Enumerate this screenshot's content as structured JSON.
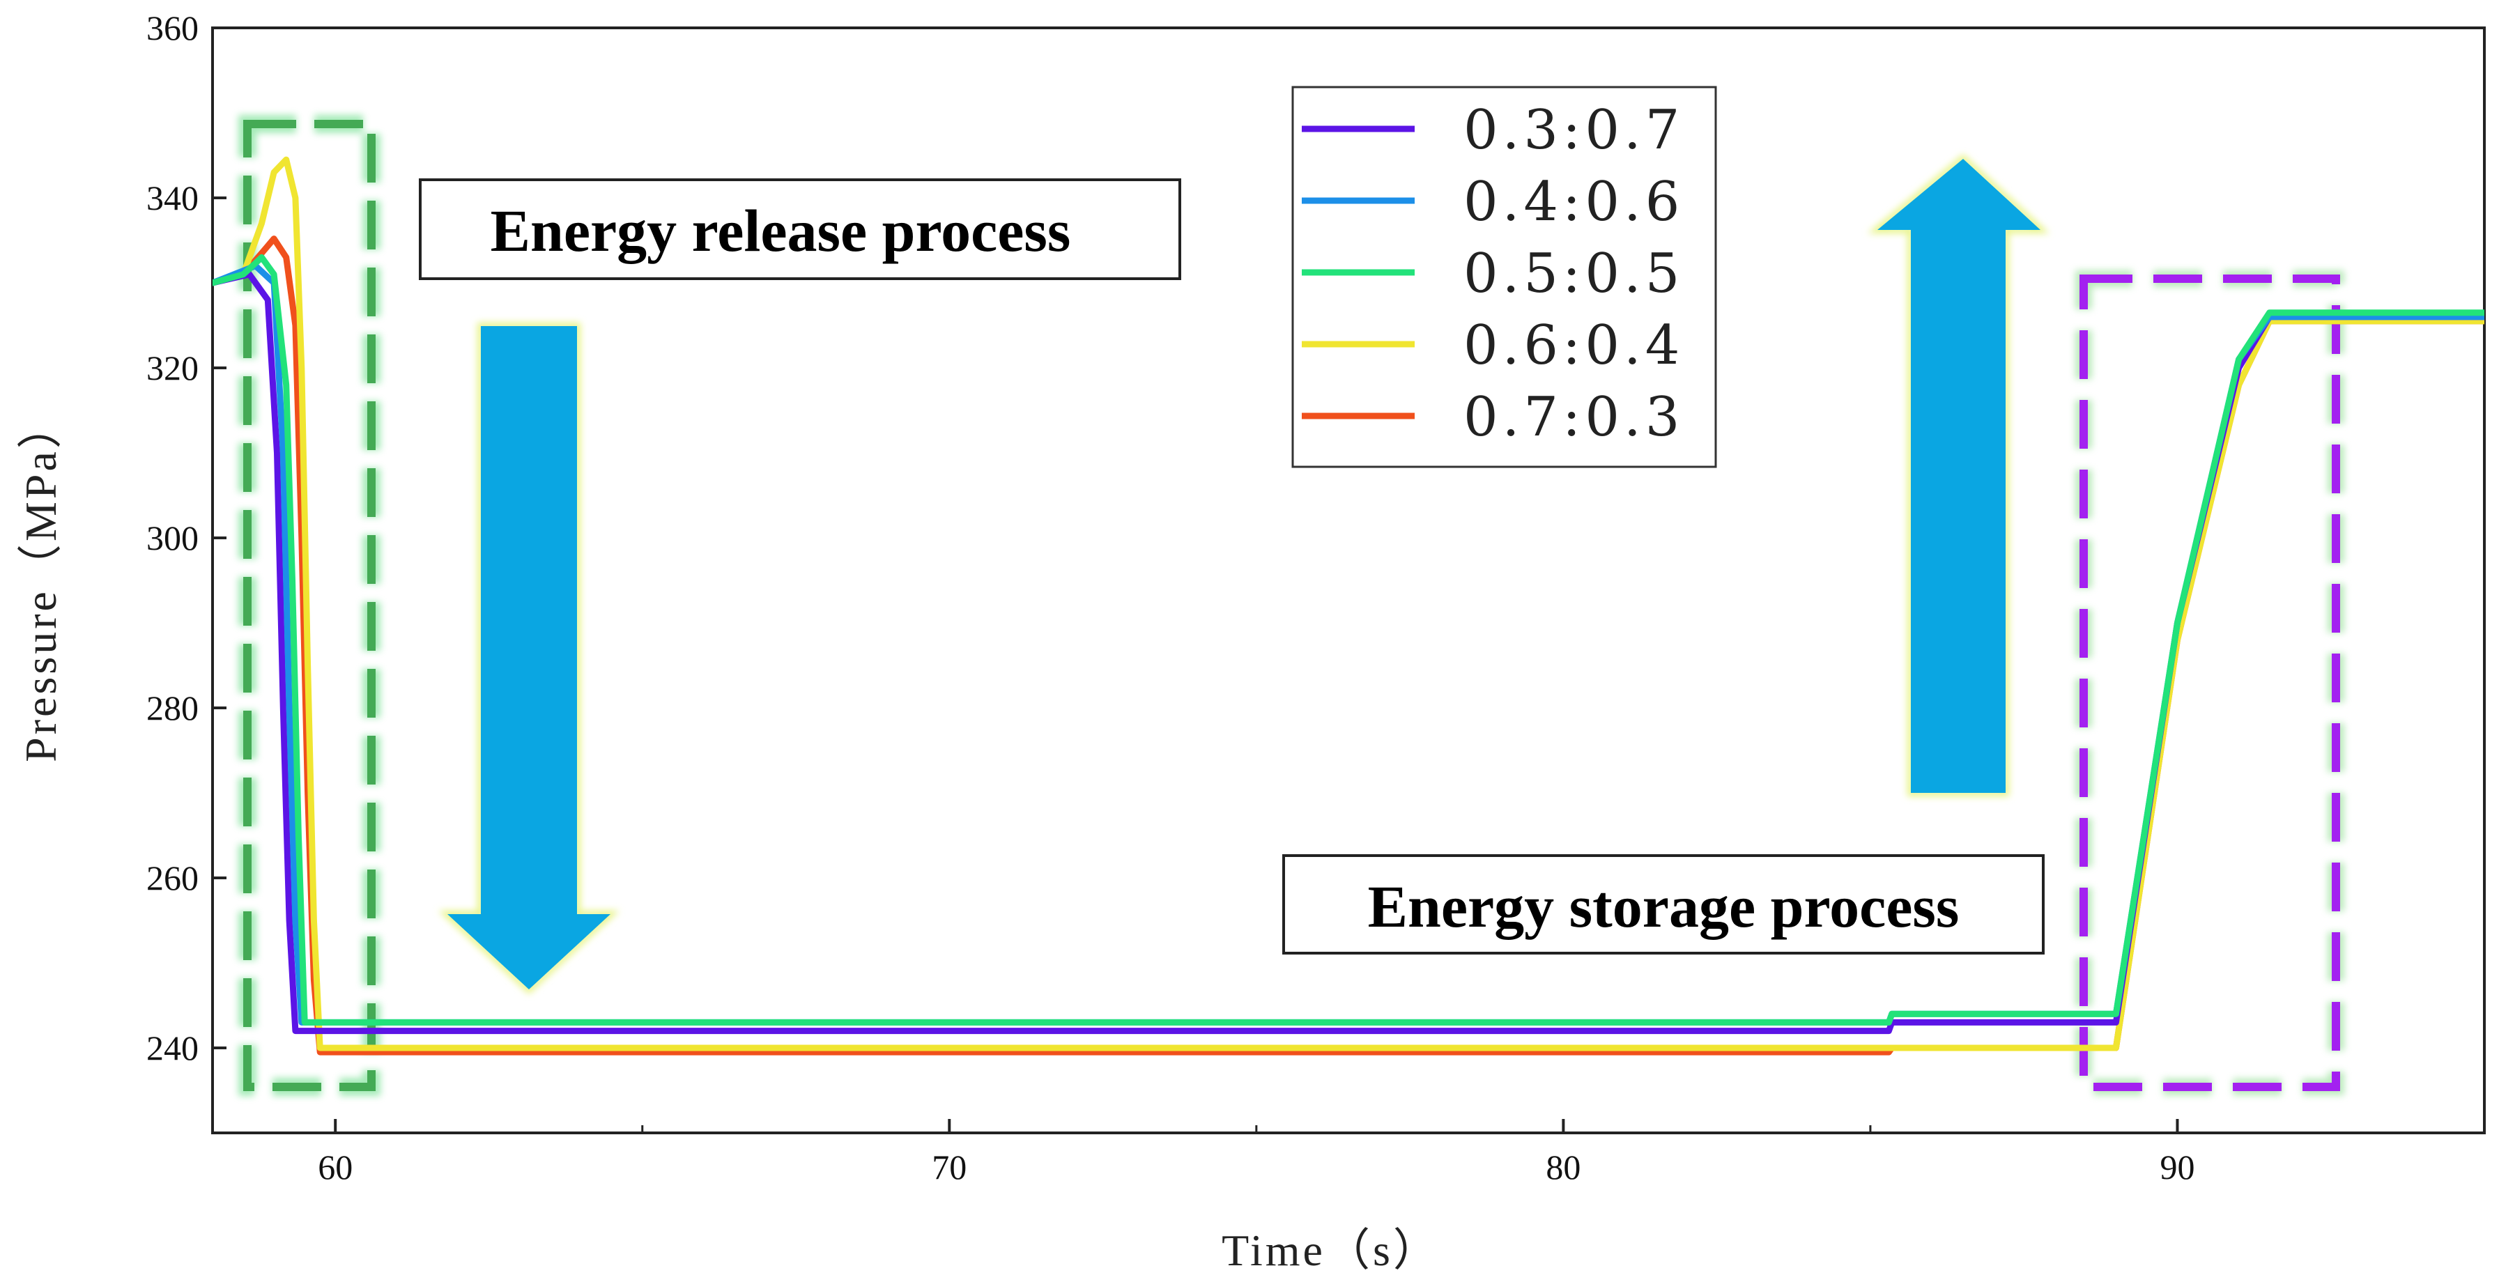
{
  "chart_data": {
    "type": "line",
    "title": "",
    "xlabel": "Time（s）",
    "ylabel": "Pressure（MPa）",
    "xlim": [
      58,
      95
    ],
    "ylim": [
      230,
      360
    ],
    "xticks": [
      60,
      70,
      80,
      90
    ],
    "yticks": [
      240,
      260,
      280,
      300,
      320,
      340,
      360
    ],
    "grid": false,
    "legend_position": "top-center",
    "series": [
      {
        "name": "0.3:0.7",
        "color": "#5b14e6",
        "x": [
          58.0,
          58.6,
          58.9,
          59.05,
          59.15,
          59.25,
          59.35,
          85.3,
          85.35,
          89.0,
          90.0,
          91.0,
          91.5,
          95.0
        ],
        "y": [
          330,
          331,
          328,
          310,
          280,
          255,
          242,
          242,
          243,
          243,
          290,
          320,
          326,
          326
        ]
      },
      {
        "name": "0.4:0.6",
        "color": "#1c8fe8",
        "x": [
          58.0,
          58.7,
          59.0,
          59.15,
          59.25,
          59.35,
          59.45,
          85.3,
          85.35,
          89.0,
          90.0,
          91.0,
          91.5,
          95.0
        ],
        "y": [
          330,
          332,
          330,
          310,
          280,
          255,
          243,
          243,
          244,
          244,
          290,
          321,
          326,
          326
        ]
      },
      {
        "name": "0.5:0.5",
        "color": "#22e27a",
        "x": [
          58.0,
          58.5,
          58.8,
          59.0,
          59.2,
          59.3,
          59.4,
          59.5,
          85.3,
          85.35,
          89.0,
          90.0,
          91.0,
          91.5,
          95.0
        ],
        "y": [
          330,
          331,
          333,
          331,
          318,
          295,
          265,
          243,
          243,
          244,
          244,
          290,
          321,
          326.5,
          326.5
        ]
      },
      {
        "name": "0.6:0.4",
        "color": "#f0e531",
        "x": [
          58.0,
          58.5,
          58.8,
          59.0,
          59.2,
          59.35,
          59.45,
          59.55,
          59.65,
          59.75,
          85.3,
          85.35,
          89.0,
          90.0,
          91.0,
          91.5,
          95.0
        ],
        "y": [
          330,
          331,
          337,
          343,
          344.5,
          340,
          320,
          285,
          255,
          240,
          240,
          240,
          240,
          288,
          318,
          325.5,
          325.5
        ]
      },
      {
        "name": "0.7:0.3",
        "color": "#f0501c",
        "x": [
          58.0,
          58.5,
          58.8,
          59.0,
          59.2,
          59.35,
          59.45,
          59.55,
          59.65,
          59.75,
          85.3,
          85.35,
          89.0,
          90.0,
          91.0,
          91.5,
          95.0
        ],
        "y": [
          330,
          331,
          333.5,
          335.2,
          333,
          325,
          300,
          270,
          248,
          239.5,
          239.5,
          240,
          240,
          288,
          318,
          325.5,
          325.5
        ]
      }
    ],
    "annotations": [
      {
        "text": "Energy release process"
      },
      {
        "text": "Energy storage process"
      }
    ]
  }
}
